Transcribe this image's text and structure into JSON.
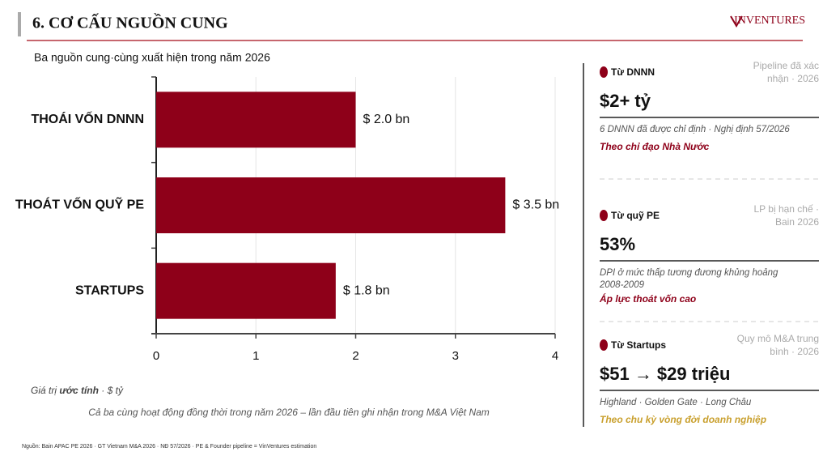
{
  "header": {
    "title": "6. CƠ CẤU NGUỒN CUNG",
    "logo": "INVENTURES"
  },
  "chart_data": {
    "type": "bar",
    "orientation": "horizontal",
    "subtitle": "Ba nguồn cung·cùng xuất hiện trong năm 2026",
    "categories": [
      "THOÁI VỐN DNNN",
      "THOÁT VỐN QUỸ PE",
      "STARTUPS"
    ],
    "values": [
      2.0,
      3.5,
      1.8
    ],
    "value_labels": [
      "$ 2.0 bn",
      "$ 3.5 bn",
      "$ 1.8 bn"
    ],
    "color": "#8e0019",
    "xlim": [
      0,
      4
    ],
    "xticks": [
      0,
      1,
      2,
      3,
      4
    ],
    "grid": true
  },
  "note": {
    "before": "Giá trị ",
    "emph": "ước tính",
    "after": " · $ tỷ"
  },
  "footer": "Cả ba cùng hoạt động đồng thời trong năm 2026 – lần đầu tiên ghi nhận trong M&A Việt Nam",
  "source": "Nguồn: Bain APAC PE 2026 · GT Vietnam M&A 2026 · NĐ 57/2026 · PE & Founder pipeline = VinVentures estimation",
  "cards": [
    {
      "label": "Từ DNNN",
      "note": [
        "Pipeline đã xác",
        "nhận · 2026"
      ],
      "value": "$2+ tỷ",
      "desc": [
        "6 DNNN đã được chỉ định · Nghị định 57/2026"
      ],
      "highlight": "Theo chỉ đạo Nhà Nước",
      "highlight_color": "#8e0019"
    },
    {
      "label": "Từ quỹ PE",
      "note": [
        "LP bị hạn chế ·",
        "Bain 2026"
      ],
      "value": "53%",
      "desc": [
        "DPI ở mức thấp tương đương khủng hoảng",
        "2008-2009"
      ],
      "highlight": "Áp lực thoát vốn cao",
      "highlight_color": "#8e0019"
    },
    {
      "label": "Từ Startups",
      "note": [
        "Quy mô M&A trung",
        "bình · 2026"
      ],
      "value": "$51 → $29 triệu",
      "desc": [
        "Highland  ·  Golden Gate  ·  Long Châu"
      ],
      "highlight": "Theo chu kỳ vòng đời doanh nghiệp",
      "highlight_color": "#c9a02e"
    }
  ]
}
